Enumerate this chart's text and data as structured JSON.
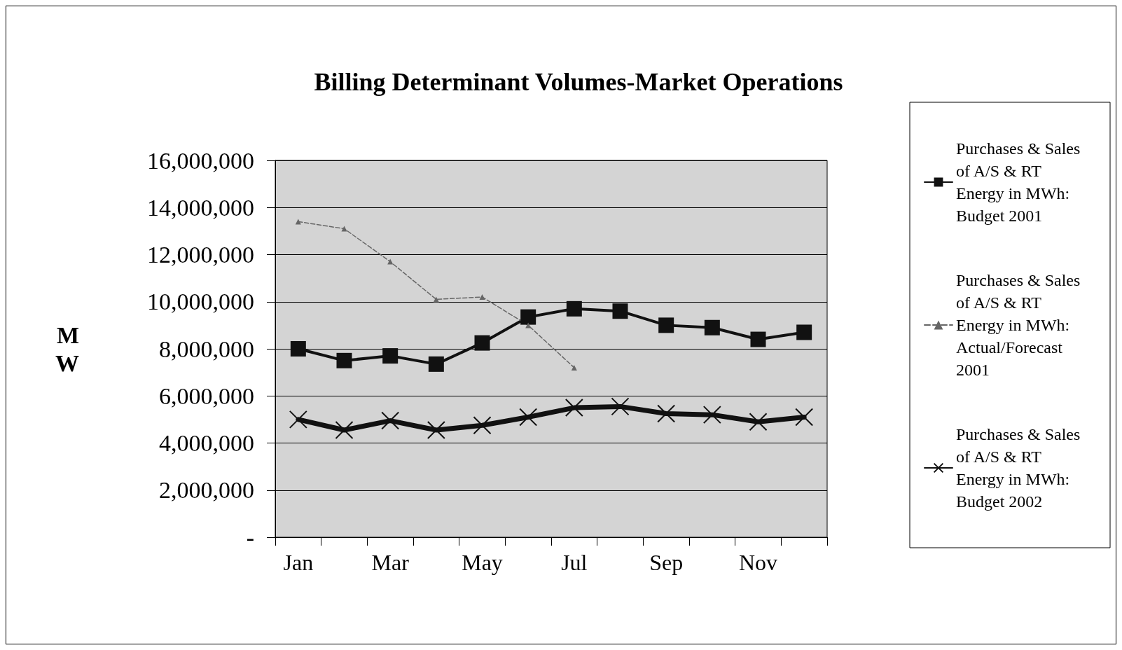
{
  "chart_data": {
    "type": "line",
    "title": "Billing Determinant Volumes-Market Operations",
    "ylabel": "MW",
    "categories": [
      "Jan",
      null,
      "Mar",
      null,
      "May",
      null,
      "Jul",
      null,
      "Sep",
      null,
      "Nov",
      null
    ],
    "ylim": [
      0,
      16000000
    ],
    "yticks": [
      {
        "value": 0,
        "label": "-"
      },
      {
        "value": 2000000,
        "label": "2,000,000"
      },
      {
        "value": 4000000,
        "label": "4,000,000"
      },
      {
        "value": 6000000,
        "label": "6,000,000"
      },
      {
        "value": 8000000,
        "label": "8,000,000"
      },
      {
        "value": 10000000,
        "label": "10,000,000"
      },
      {
        "value": 12000000,
        "label": "12,000,000"
      },
      {
        "value": 14000000,
        "label": "14,000,000"
      },
      {
        "value": 16000000,
        "label": "16,000,000"
      }
    ],
    "grid": "y",
    "legend": "right",
    "series": [
      {
        "name": "Purchases & Sales of A/S & RT Energy in MWh: Budget 2001",
        "color": "#111111",
        "marker": "square",
        "line_style": "solid",
        "values": [
          8000000,
          7500000,
          7700000,
          7350000,
          8250000,
          9350000,
          9700000,
          9600000,
          9000000,
          8900000,
          8400000,
          8700000
        ]
      },
      {
        "name": "Purchases & Sales of A/S & RT Energy in MWh: Actual/Forecast 2001",
        "color": "#666666",
        "marker": "triangle",
        "line_style": "dashed",
        "values": [
          13400000,
          13100000,
          11700000,
          10100000,
          10200000,
          9000000,
          7200000,
          null,
          null,
          null,
          null,
          null
        ]
      },
      {
        "name": "Purchases & Sales of A/S & RT Energy in MWh: Budget 2002",
        "color": "#111111",
        "marker": "cross",
        "line_style": "solid",
        "values": [
          5000000,
          4550000,
          4950000,
          4550000,
          4750000,
          5100000,
          5500000,
          5550000,
          5250000,
          5200000,
          4900000,
          5100000
        ]
      }
    ]
  }
}
